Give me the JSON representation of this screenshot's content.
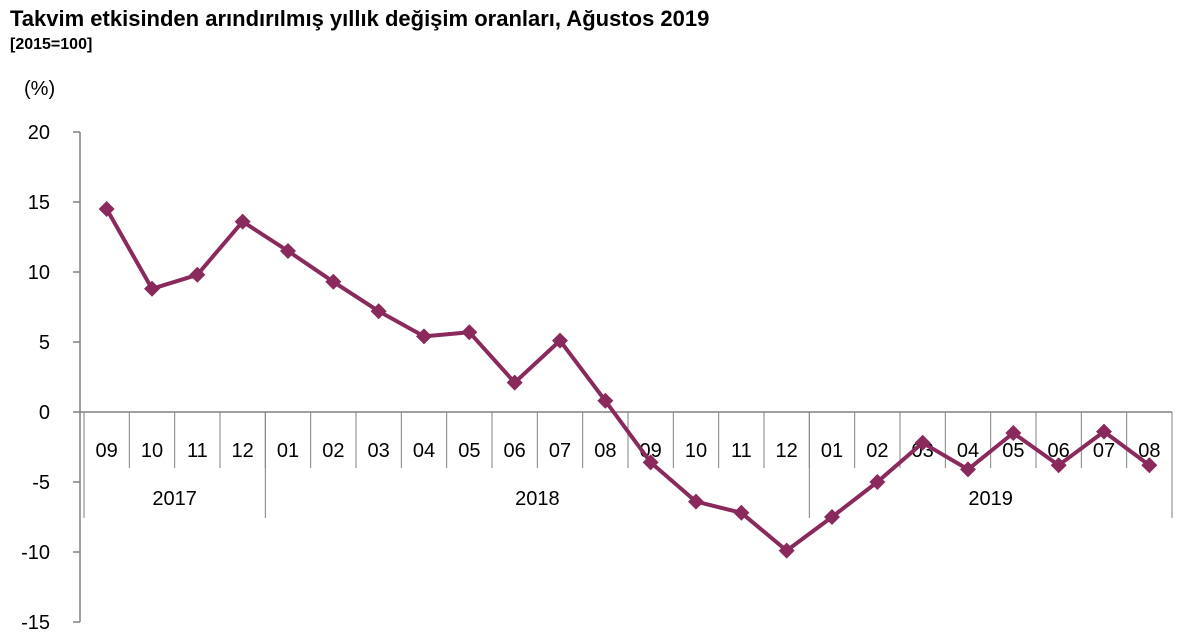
{
  "title": "Takvim etkisinden arındırılmış yıllık değişim oranları, Ağustos 2019",
  "subtitle": "[2015=100]",
  "chart_data": {
    "type": "line",
    "ylabel": "(%)",
    "ylim": [
      -15,
      20
    ],
    "yticks": [
      -15,
      -10,
      -5,
      0,
      5,
      10,
      15,
      20
    ],
    "categories": [
      "09",
      "10",
      "11",
      "12",
      "01",
      "02",
      "03",
      "04",
      "05",
      "06",
      "07",
      "08",
      "09",
      "10",
      "11",
      "12",
      "01",
      "02",
      "03",
      "04",
      "05",
      "06",
      "07",
      "08"
    ],
    "year_groups": [
      {
        "label": "2017",
        "count": 4
      },
      {
        "label": "2018",
        "count": 12
      },
      {
        "label": "2019",
        "count": 8
      }
    ],
    "series": [
      {
        "values": [
          14.5,
          8.8,
          9.8,
          13.6,
          11.5,
          9.3,
          7.2,
          5.4,
          5.7,
          2.1,
          5.1,
          0.8,
          -3.6,
          -6.4,
          -7.2,
          -9.9,
          -7.5,
          -5.0,
          -2.2,
          -4.1,
          -1.5,
          -3.8,
          -1.4,
          -3.8
        ],
        "color": "#8a2a5c"
      }
    ],
    "grid": false,
    "legend": "none"
  }
}
